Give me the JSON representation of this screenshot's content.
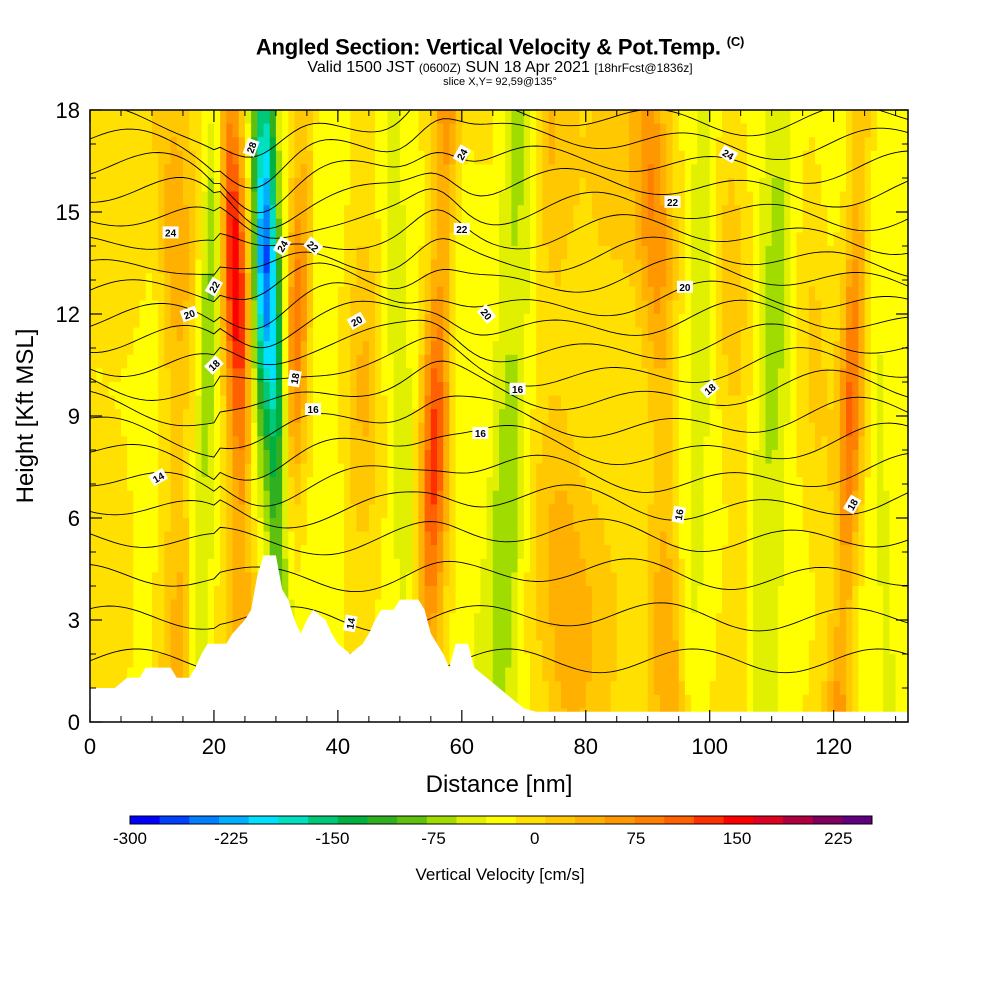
{
  "title": {
    "main": "Angled Section: Vertical Velocity & Pot.Temp.",
    "main_unit": "(C)",
    "valid_prefix": "Valid 1500 JST",
    "valid_utc": "(0600Z)",
    "valid_date": "SUN 18 Apr 2021",
    "forecast": "[18hrFcst@1836z]",
    "slice": "slice X,Y= 92,59@135°"
  },
  "chart_data": {
    "type": "heatmap",
    "xlabel": "Distance [nm]",
    "ylabel": "Height [Kft MSL]",
    "xlim": [
      0,
      132
    ],
    "ylim": [
      0,
      18
    ],
    "x_ticks": [
      0,
      20,
      40,
      60,
      80,
      100,
      120
    ],
    "y_ticks": [
      0,
      3,
      6,
      9,
      12,
      15,
      18
    ],
    "colorbar": {
      "title": "Vertical Velocity [cm/s]",
      "min": -300,
      "max": 250,
      "step": 25,
      "tick_values": [
        -300,
        -225,
        -150,
        -75,
        0,
        75,
        150,
        225
      ],
      "colors": [
        "#0000ff",
        "#0040ff",
        "#0080ff",
        "#00b0ff",
        "#00e0ff",
        "#00e0c0",
        "#00c878",
        "#00b040",
        "#30b020",
        "#60c010",
        "#a0dc00",
        "#e0f000",
        "#ffff00",
        "#ffe000",
        "#ffc800",
        "#ffb000",
        "#ff9800",
        "#ff8000",
        "#ff6000",
        "#ff3000",
        "#ff0000",
        "#e00020",
        "#b00040",
        "#800060",
        "#600080"
      ]
    },
    "terrain_kft": [
      [
        0,
        1.0
      ],
      [
        4,
        1.0
      ],
      [
        6,
        1.3
      ],
      [
        8,
        1.3
      ],
      [
        9,
        1.6
      ],
      [
        13,
        1.6
      ],
      [
        14,
        1.3
      ],
      [
        16,
        1.3
      ],
      [
        17,
        1.6
      ],
      [
        18,
        2.0
      ],
      [
        19,
        2.3
      ],
      [
        22,
        2.3
      ],
      [
        23,
        2.6
      ],
      [
        25,
        3.0
      ],
      [
        26,
        3.3
      ],
      [
        27,
        4.3
      ],
      [
        28,
        4.9
      ],
      [
        30,
        4.9
      ],
      [
        31,
        3.9
      ],
      [
        32,
        3.6
      ],
      [
        33,
        3.0
      ],
      [
        34,
        2.6
      ],
      [
        35,
        3.0
      ],
      [
        36,
        3.3
      ],
      [
        38,
        3.0
      ],
      [
        39,
        2.6
      ],
      [
        40,
        2.3
      ],
      [
        42,
        2.0
      ],
      [
        44,
        2.3
      ],
      [
        45,
        2.6
      ],
      [
        46,
        3.0
      ],
      [
        47,
        3.3
      ],
      [
        49,
        3.3
      ],
      [
        50,
        3.6
      ],
      [
        53,
        3.6
      ],
      [
        54,
        3.3
      ],
      [
        55,
        2.6
      ],
      [
        56,
        2.3
      ],
      [
        57,
        2.0
      ],
      [
        58,
        1.6
      ],
      [
        59,
        2.3
      ],
      [
        61,
        2.3
      ],
      [
        62,
        1.6
      ],
      [
        64,
        1.3
      ],
      [
        66,
        1.0
      ],
      [
        68,
        0.7
      ],
      [
        70,
        0.4
      ],
      [
        72,
        0.3
      ],
      [
        132,
        0.3
      ]
    ],
    "vertical_velocity_bands": [
      {
        "x": 3,
        "w": 96,
        "v": 30
      },
      {
        "x": 10,
        "w": 2.5,
        "v": -40
      },
      {
        "x": 14,
        "w": 3,
        "v": 60
      },
      {
        "x": 19,
        "w": 2.0,
        "v": -110
      },
      {
        "x": 24,
        "w": 2.2,
        "v": 180
      },
      {
        "x": 27,
        "w": 1.6,
        "v": -90
      },
      {
        "x": 29.5,
        "w": 2.2,
        "v": -240
      },
      {
        "x": 33,
        "w": 2.0,
        "v": 110
      },
      {
        "x": 38,
        "w": 4,
        "v": -40
      },
      {
        "x": 44,
        "w": 3,
        "v": 40
      },
      {
        "x": 50,
        "w": 3,
        "v": -60
      },
      {
        "x": 56,
        "w": 2.2,
        "v": 150
      },
      {
        "x": 60,
        "w": 3,
        "v": -30
      },
      {
        "x": 68,
        "w": 3,
        "v": -90
      },
      {
        "x": 75,
        "w": 4,
        "v": 50
      },
      {
        "x": 83,
        "w": 5,
        "v": 25
      },
      {
        "x": 92,
        "w": 3,
        "v": 90
      },
      {
        "x": 98,
        "w": 3,
        "v": -50
      },
      {
        "x": 104,
        "w": 3,
        "v": 40
      },
      {
        "x": 110,
        "w": 3,
        "v": -70
      },
      {
        "x": 117,
        "w": 3,
        "v": 30
      },
      {
        "x": 123,
        "w": 2,
        "v": 130
      },
      {
        "x": 127,
        "w": 2,
        "v": -30
      }
    ],
    "theta_contours": [
      {
        "base": 1.8,
        "slope": 0.0,
        "label": ""
      },
      {
        "base": 3.0,
        "slope": 0.05,
        "label": ""
      },
      {
        "base": 4.2,
        "slope": 0.08,
        "label": ""
      },
      {
        "base": 5.3,
        "slope": 0.1,
        "label": ""
      },
      {
        "base": 6.2,
        "slope": 0.13,
        "label": "14"
      },
      {
        "base": 7.0,
        "slope": 0.15,
        "label": ""
      },
      {
        "base": 7.8,
        "slope": 0.17,
        "label": ""
      },
      {
        "base": 8.6,
        "slope": 0.16,
        "label": "16"
      },
      {
        "base": 9.4,
        "slope": 0.16,
        "label": ""
      },
      {
        "base": 10.1,
        "slope": 0.15,
        "label": "18"
      },
      {
        "base": 10.8,
        "slope": 0.15,
        "label": ""
      },
      {
        "base": 11.5,
        "slope": 0.15,
        "label": "20"
      },
      {
        "base": 12.1,
        "slope": 0.14,
        "label": ""
      },
      {
        "base": 12.8,
        "slope": 0.14,
        "label": "22"
      },
      {
        "base": 13.4,
        "slope": 0.14,
        "label": ""
      },
      {
        "base": 14.1,
        "slope": 0.13,
        "label": "24"
      },
      {
        "base": 14.8,
        "slope": 0.12,
        "label": ""
      },
      {
        "base": 15.5,
        "slope": 0.12,
        "label": ""
      },
      {
        "base": 16.2,
        "slope": 0.11,
        "label": ""
      },
      {
        "base": 16.9,
        "slope": 0.1,
        "label": ""
      },
      {
        "base": 17.6,
        "slope": 0.09,
        "label": ""
      }
    ],
    "contour_labels": [
      {
        "text": "14",
        "x": 11,
        "y": 7.2,
        "rot": 30
      },
      {
        "text": "14",
        "x": 42,
        "y": 2.9,
        "rot": 80
      },
      {
        "text": "16",
        "x": 36,
        "y": 9.2,
        "rot": 0
      },
      {
        "text": "16",
        "x": 63,
        "y": 8.5,
        "rot": 0
      },
      {
        "text": "16",
        "x": 69,
        "y": 9.8,
        "rot": 0
      },
      {
        "text": "16",
        "x": 95,
        "y": 6.1,
        "rot": 80
      },
      {
        "text": "18",
        "x": 20,
        "y": 10.5,
        "rot": 45
      },
      {
        "text": "18",
        "x": 33,
        "y": 10.1,
        "rot": 80
      },
      {
        "text": "18",
        "x": 100,
        "y": 9.8,
        "rot": 40
      },
      {
        "text": "18",
        "x": 123,
        "y": 6.4,
        "rot": 60
      },
      {
        "text": "20",
        "x": 16,
        "y": 12.0,
        "rot": 20
      },
      {
        "text": "20",
        "x": 43,
        "y": 11.8,
        "rot": 30
      },
      {
        "text": "20",
        "x": 64,
        "y": 12.0,
        "rot": -50
      },
      {
        "text": "20",
        "x": 96,
        "y": 12.8,
        "rot": 0
      },
      {
        "text": "22",
        "x": 20,
        "y": 12.8,
        "rot": 60
      },
      {
        "text": "22",
        "x": 36,
        "y": 14.0,
        "rot": -40
      },
      {
        "text": "22",
        "x": 60,
        "y": 14.5,
        "rot": 0
      },
      {
        "text": "22",
        "x": 94,
        "y": 15.3,
        "rot": 0
      },
      {
        "text": "24",
        "x": 13,
        "y": 14.4,
        "rot": 0
      },
      {
        "text": "24",
        "x": 31,
        "y": 14.0,
        "rot": 60
      },
      {
        "text": "24",
        "x": 60,
        "y": 16.7,
        "rot": 60
      },
      {
        "text": "24",
        "x": 103,
        "y": 16.7,
        "rot": -30
      },
      {
        "text": "28",
        "x": 26,
        "y": 16.9,
        "rot": 70
      }
    ]
  }
}
